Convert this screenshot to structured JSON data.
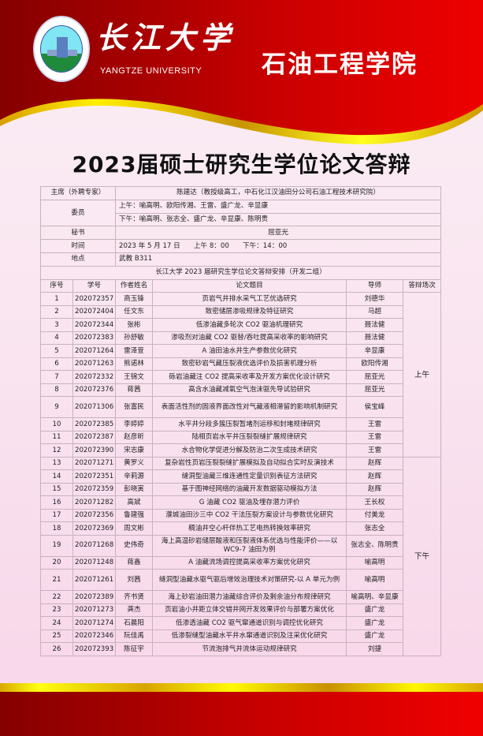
{
  "header": {
    "university_cn": "长江大学",
    "university_en": "YANGTZE UNIVERSITY",
    "college": "石油工程学院",
    "logo_text": "YANGTZE UNIVERSITY"
  },
  "title": "2023届硕士研究生学位论文答辩",
  "info": {
    "chair_label": "主席（外聘专家）",
    "chair": "陈建达（教授级高工，中石化江汉油田分公司石油工程技术研究院）",
    "members_label": "委员",
    "members_am": "上午：喻高明、欧阳传湘、王雷、盛广龙、辛显康",
    "members_pm": "下午：喻高明、张志全、盛广龙、辛显康、陈明贵",
    "secretary_label": "秘书",
    "secretary": "屈亚光",
    "time_label": "时间",
    "time": "2023 年 5 月 17 日　　上午 8：00　　下午：14：00",
    "place_label": "地点",
    "place": "武教 B311",
    "schedule_title": "长江大学 2023 届研究生学位论文答辩安排（开发二组）"
  },
  "columns": [
    "序号",
    "学号",
    "作者姓名",
    "论文题目",
    "导师",
    "答辩场次"
  ],
  "sessions": {
    "am": "上午",
    "pm": "下午"
  },
  "rows": [
    [
      "1",
      "202072357",
      "商玉锋",
      "页岩气井排水采气工艺优选研究",
      "刘德华"
    ],
    [
      "2",
      "202072404",
      "任文东",
      "致密储层渗吸规律及特征研究",
      "马超"
    ],
    [
      "3",
      "202072344",
      "张彬",
      "低渗油藏多轮次 CO2 驱油机理研究",
      "聂法健"
    ],
    [
      "4",
      "202072383",
      "孙舒敏",
      "渗吸剂对油藏 CO2 驱替/吞吐提高采收率的影响研究",
      "聂法健"
    ],
    [
      "5",
      "202071264",
      "雷泽萱",
      "A 油田油水井生产参数优化研究",
      "辛显康"
    ],
    [
      "6",
      "202071263",
      "熊诺林",
      "致密砂岩气藏压裂液优选评价及损害机理分析",
      "欧阳传湘"
    ],
    [
      "7",
      "202072332",
      "王锦文",
      "砾岩油藏注 CO2 提高采收率及开发方案优化设计研究",
      "屈亚光"
    ],
    [
      "8",
      "202072376",
      "蒋茜",
      "高含水油藏减氧空气泡沫驱先导试验研究",
      "屈亚光"
    ],
    [
      "9",
      "202071306",
      "张富民",
      "表面活性剂的固液界面改性对气藏液相滞留的影响机制研究",
      "侯宝峰"
    ],
    [
      "10",
      "202072385",
      "李婷婷",
      "水平井分段多簇压裂暂堵剂运移和封堵规律研究",
      "王雷"
    ],
    [
      "11",
      "202072387",
      "赵彦昕",
      "陆相页岩水平井压裂裂缝扩展规律研究",
      "王雷"
    ],
    [
      "12",
      "202072390",
      "宋志康",
      "水合物化学促进分解及防治二次生成技术研究",
      "王雷"
    ],
    [
      "13",
      "202071271",
      "黄罗义",
      "复杂岩性页岩压裂裂缝扩展模拟及自动拟合实时反演技术",
      "赵辉"
    ],
    [
      "14",
      "202072351",
      "辛莉源",
      "缝洞型油藏三维连通性定量识别表征方法研究",
      "赵辉"
    ],
    [
      "15",
      "202072359",
      "彭晓寅",
      "基于图神经网络的油藏开发数据驱动模拟方法",
      "赵辉"
    ],
    [
      "16",
      "202071282",
      "高斌",
      "G 油藏 CO2 驱油及埋存潜力评价",
      "王长权"
    ],
    [
      "17",
      "202072356",
      "鲁建强",
      "濮城油田沙三中 CO2 干法压裂方案设计与参数优化研究",
      "付美龙"
    ],
    [
      "18",
      "202072369",
      "周文彬",
      "稠油井空心杆伴热工艺电热转换效率研究",
      "张志全"
    ],
    [
      "19",
      "202071268",
      "史伟奇",
      "海上高温砂岩储层酸液和压裂液体系优选与性能评价——以 WC9-7 油田为例",
      "张志全、陈明贵"
    ],
    [
      "20",
      "202071248",
      "蒋鑫",
      "A 油藏流场调控提高采收率方案优化研究",
      "喻高明"
    ],
    [
      "21",
      "202071261",
      "刘茜",
      "缝洞型油藏水驱气驱后增效治理技术对策研究-以 A 单元为例",
      "喻高明"
    ],
    [
      "22",
      "202072389",
      "齐书贤",
      "海上砂岩油田潜力油藏综合评价及剩余油分布规律研究",
      "喻高明、辛显康"
    ],
    [
      "23",
      "202071273",
      "龚杰",
      "页岩油小井距立体交错井网开发效果评价与部署方案优化",
      "盛广龙"
    ],
    [
      "24",
      "202071274",
      "石晨阳",
      "低渗透油藏 CO2 驱气窜通道识别与调控优化研究",
      "盛广龙"
    ],
    [
      "25",
      "202072346",
      "阮佳禹",
      "低渗裂缝型油藏水平井水窜通道识别及注采优化研究",
      "盛广龙"
    ],
    [
      "26",
      "202072393",
      "陈征宇",
      "节流泡排气井流体运动规律研究",
      "刘捷"
    ]
  ],
  "colors": {
    "red_dark": "#850000",
    "red_bright": "#f00000",
    "gold": "#ffff10",
    "background": "#f9e4ef"
  }
}
